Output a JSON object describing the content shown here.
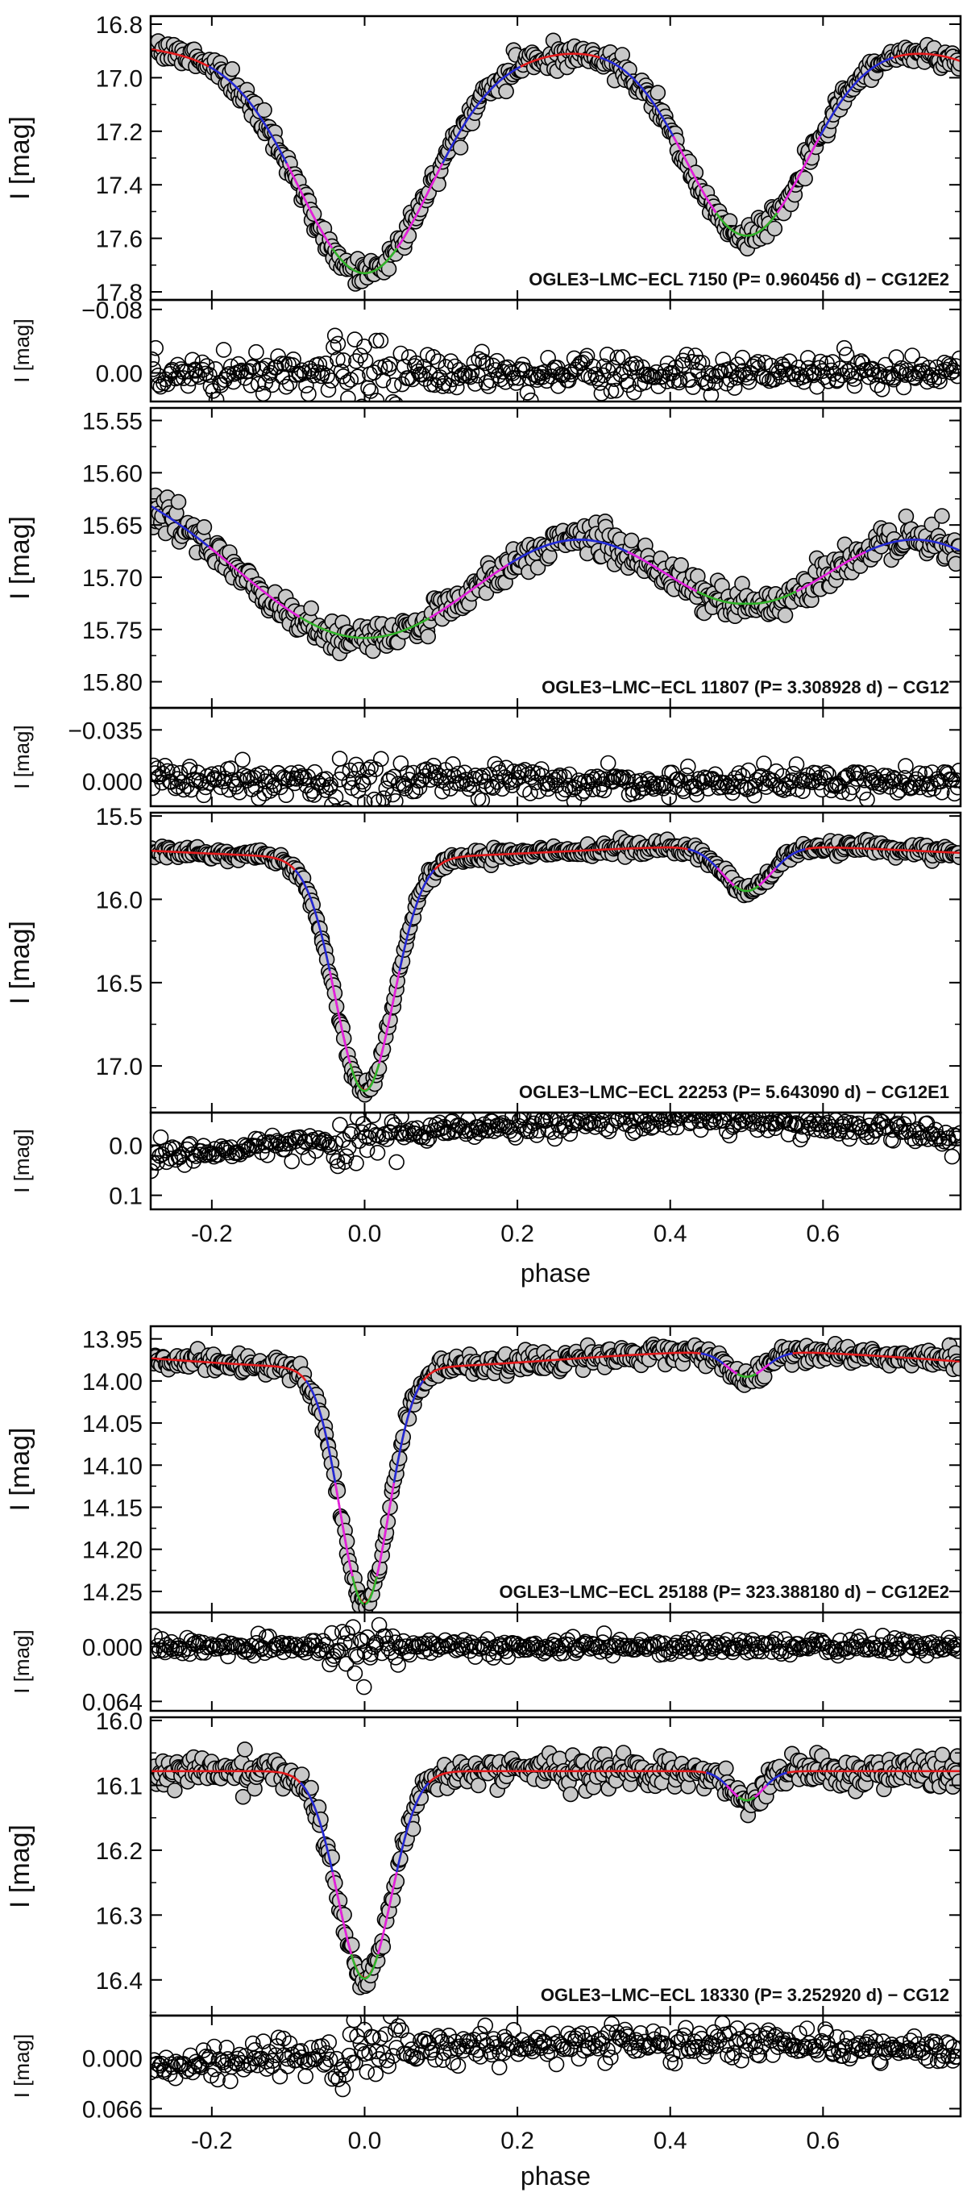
{
  "chart_data": [
    {
      "figure": "top",
      "type": "scatter",
      "xlabel": "phase",
      "xlim": [
        -0.28,
        0.78
      ],
      "xticks": [
        "-0.2",
        "0.0",
        "0.2",
        "0.4",
        "0.6"
      ],
      "xtick_values": [
        -0.2,
        0.0,
        0.2,
        0.4,
        0.6
      ],
      "panels": [
        {
          "name": "OGLE3-LMC-ECL 7150",
          "annotation": "OGLE3−LMC−ECL 7150  (P= 0.960456 d) − CG12E2",
          "period_days": 0.960456,
          "model": "CG12E2",
          "ylabel": "I [mag]",
          "ylim": [
            17.83,
            16.77
          ],
          "yticks": [
            "16.8",
            "17.0",
            "17.2",
            "17.4",
            "17.6",
            "17.8"
          ],
          "ytick_values": [
            16.8,
            17.0,
            17.2,
            17.4,
            17.6,
            17.8
          ],
          "curve": {
            "base": 16.85,
            "primary_depth": 0.78,
            "primary_width": 0.085,
            "secondary_depth": 0.74,
            "secondary_width": 0.08,
            "reflection": 0.1,
            "reflection_mode": "cos2"
          },
          "scatter": 0.022,
          "residuals": {
            "ylabel": "I [mag]",
            "ylim": [
              0.036,
              -0.092
            ],
            "yticks": [
              "−0.08",
              "0.00"
            ],
            "ytick_values": [
              -0.08,
              0.0
            ],
            "scatter": 0.011,
            "sag": 0.0
          }
        },
        {
          "name": "OGLE3-LMC-ECL 11807",
          "annotation": "OGLE3−LMC−ECL 11807  (P= 3.308928 d) − CG12",
          "period_days": 3.308928,
          "model": "CG12",
          "ylabel": "I [mag]",
          "ylim": [
            15.825,
            15.538
          ],
          "yticks": [
            "15.55",
            "15.60",
            "15.65",
            "15.70",
            "15.75",
            "15.80"
          ],
          "ytick_values": [
            15.55,
            15.6,
            15.65,
            15.7,
            15.75,
            15.8
          ],
          "curve": {
            "base": 15.588,
            "primary_depth": 0.17,
            "primary_width": 0.17,
            "secondary_depth": 0.135,
            "secondary_width": 0.13,
            "reflection": 0.0,
            "reflection_mode": "cos2"
          },
          "scatter": 0.008,
          "residuals": {
            "ylabel": "I [mag]",
            "ylim": [
              0.017,
              -0.05
            ],
            "yticks": [
              "−0.035",
              "0.000"
            ],
            "ytick_values": [
              -0.035,
              0.0
            ],
            "scatter": 0.005,
            "sag": 0.0
          }
        },
        {
          "name": "OGLE3-LMC-ECL 22253",
          "annotation": "OGLE3−LMC−ECL 22253  (P= 5.643090 d) − CG12E1",
          "period_days": 5.64309,
          "model": "CG12E1",
          "ylabel": "I [mag]",
          "ylim": [
            17.28,
            15.48
          ],
          "yticks": [
            "15.5",
            "16.0",
            "16.5",
            "17.0"
          ],
          "ytick_values": [
            15.5,
            16.0,
            16.5,
            17.0
          ],
          "curve": {
            "base": 15.68,
            "primary_depth": 1.4,
            "primary_width": 0.038,
            "secondary_depth": 0.27,
            "secondary_width": 0.032,
            "reflection": 0.07,
            "reflection_mode": "cos2"
          },
          "scatter": 0.02,
          "residuals": {
            "ylabel": "I [mag]",
            "ylim": [
              0.128,
              -0.065
            ],
            "yticks": [
              "0.0",
              "0.1"
            ],
            "ytick_values": [
              0.0,
              0.1
            ],
            "scatter": 0.012,
            "sag": 0.05
          }
        }
      ]
    },
    {
      "figure": "bottom",
      "type": "scatter",
      "xlabel": "phase",
      "xlim": [
        -0.28,
        0.78
      ],
      "xticks": [
        "-0.2",
        "0.0",
        "0.2",
        "0.4",
        "0.6"
      ],
      "xtick_values": [
        -0.2,
        0.0,
        0.2,
        0.4,
        0.6
      ],
      "panels": [
        {
          "name": "OGLE3-LMC-ECL 25188",
          "annotation": "OGLE3−LMC−ECL 25188  (P= 323.388180 d) − CG12E2",
          "period_days": 323.38818,
          "model": "CG12E2",
          "ylabel": "I [mag]",
          "ylim": [
            14.275,
            13.935
          ],
          "yticks": [
            "13.95",
            "14.00",
            "14.05",
            "14.10",
            "14.15",
            "14.20",
            "14.25"
          ],
          "ytick_values": [
            13.95,
            14.0,
            14.05,
            14.1,
            14.15,
            14.2,
            14.25
          ],
          "curve": {
            "base": 13.965,
            "primary_depth": 0.28,
            "primary_width": 0.032,
            "secondary_depth": 0.03,
            "secondary_width": 0.025,
            "reflection": 0.02,
            "reflection_mode": "cos2"
          },
          "scatter": 0.006,
          "residuals": {
            "ylabel": "I [mag]",
            "ylim": [
              0.075,
              -0.04
            ],
            "yticks": [
              "0.000",
              "0.064"
            ],
            "ytick_values": [
              0.0,
              0.064
            ],
            "scatter": 0.005,
            "sag": 0.0
          }
        },
        {
          "name": "OGLE3-LMC-ECL 18330",
          "annotation": "OGLE3−LMC−ECL 18330  (P= 3.252920 d) − CG12",
          "period_days": 3.25292,
          "model": "CG12",
          "ylabel": "I [mag]",
          "ylim": [
            16.455,
            15.995
          ],
          "yticks": [
            "16.0",
            "16.1",
            "16.2",
            "16.3",
            "16.4"
          ],
          "ytick_values": [
            16.0,
            16.1,
            16.2,
            16.3,
            16.4
          ],
          "curve": {
            "base": 16.078,
            "primary_depth": 0.32,
            "primary_width": 0.035,
            "secondary_depth": 0.045,
            "secondary_width": 0.022,
            "reflection": 0.0,
            "reflection_mode": "cos2"
          },
          "scatter": 0.012,
          "residuals": {
            "ylabel": "I [mag]",
            "ylim": [
              0.076,
              -0.055
            ],
            "yticks": [
              "0.000",
              "0.066"
            ],
            "ytick_values": [
              0.0,
              0.066
            ],
            "scatter": 0.01,
            "sag": 0.02
          }
        }
      ]
    }
  ]
}
